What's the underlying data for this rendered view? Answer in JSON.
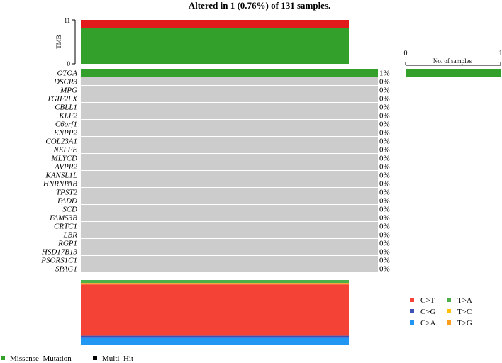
{
  "chart_data": {
    "type": "heatmap",
    "title": "Altered in 1 (0.76%) of 131 samples.",
    "tmb_panel": {
      "axis_label": "TMB",
      "ylim": [
        0,
        11
      ],
      "ticks": [
        "0",
        "11"
      ],
      "stack": [
        {
          "color": "#33A02C",
          "value": 8.9
        },
        {
          "color": "#E31A1C",
          "value": 2.1
        }
      ]
    },
    "genes": [
      {
        "name": "OTOA",
        "pct": "1%",
        "altered": true,
        "count": 1
      },
      {
        "name": "DSCR3",
        "pct": "0%",
        "altered": false,
        "count": 0
      },
      {
        "name": "MPG",
        "pct": "0%",
        "altered": false,
        "count": 0
      },
      {
        "name": "TGIF2LX",
        "pct": "0%",
        "altered": false,
        "count": 0
      },
      {
        "name": "CBLL1",
        "pct": "0%",
        "altered": false,
        "count": 0
      },
      {
        "name": "KLF2",
        "pct": "0%",
        "altered": false,
        "count": 0
      },
      {
        "name": "C6orf1",
        "pct": "0%",
        "altered": false,
        "count": 0
      },
      {
        "name": "ENPP2",
        "pct": "0%",
        "altered": false,
        "count": 0
      },
      {
        "name": "COL23A1",
        "pct": "0%",
        "altered": false,
        "count": 0
      },
      {
        "name": "NELFE",
        "pct": "0%",
        "altered": false,
        "count": 0
      },
      {
        "name": "MLYCD",
        "pct": "0%",
        "altered": false,
        "count": 0
      },
      {
        "name": "AVPR2",
        "pct": "0%",
        "altered": false,
        "count": 0
      },
      {
        "name": "KANSL1L",
        "pct": "0%",
        "altered": false,
        "count": 0
      },
      {
        "name": "HNRNPAB",
        "pct": "0%",
        "altered": false,
        "count": 0
      },
      {
        "name": "TPST2",
        "pct": "0%",
        "altered": false,
        "count": 0
      },
      {
        "name": "FADD",
        "pct": "0%",
        "altered": false,
        "count": 0
      },
      {
        "name": "SCD",
        "pct": "0%",
        "altered": false,
        "count": 0
      },
      {
        "name": "FAM53B",
        "pct": "0%",
        "altered": false,
        "count": 0
      },
      {
        "name": "CRTC1",
        "pct": "0%",
        "altered": false,
        "count": 0
      },
      {
        "name": "LBR",
        "pct": "0%",
        "altered": false,
        "count": 0
      },
      {
        "name": "RGP1",
        "pct": "0%",
        "altered": false,
        "count": 0
      },
      {
        "name": "HSD17B13",
        "pct": "0%",
        "altered": false,
        "count": 0
      },
      {
        "name": "PSORS1C1",
        "pct": "0%",
        "altered": false,
        "count": 0
      },
      {
        "name": "SPAG1",
        "pct": "0%",
        "altered": false,
        "count": 0
      }
    ],
    "colors": {
      "altered": "#33A02C",
      "empty": "#CCCCCC",
      "separator": "#FFFFFF"
    },
    "samples_panel": {
      "label": "No. of samples",
      "xlim": [
        0,
        1
      ],
      "ticks": [
        "0",
        "1"
      ]
    },
    "titv_bar": [
      {
        "class": "T>A",
        "color": "#4DAF4A",
        "fraction": 0.046
      },
      {
        "class": "T>G",
        "color": "#FF9E1B",
        "fraction": 0.023
      },
      {
        "class": "C>T",
        "color": "#F44336",
        "fraction": 0.795
      },
      {
        "class": "C>G",
        "color": "#3F51B5",
        "fraction": 0.034
      },
      {
        "class": "C>A",
        "color": "#2196F3",
        "fraction": 0.102
      }
    ],
    "titv_legend": [
      {
        "label": "C>T",
        "color": "#F44336"
      },
      {
        "label": "T>A",
        "color": "#4DAF4A"
      },
      {
        "label": "C>G",
        "color": "#3F51B5"
      },
      {
        "label": "T>C",
        "color": "#FFC107"
      },
      {
        "label": "C>A",
        "color": "#2196F3"
      },
      {
        "label": "T>G",
        "color": "#FF9E1B"
      }
    ],
    "variant_legend": [
      {
        "label": "Missense_Mutation",
        "color": "#33A02C"
      },
      {
        "label": "Multi_Hit",
        "color": "#000000"
      }
    ]
  }
}
